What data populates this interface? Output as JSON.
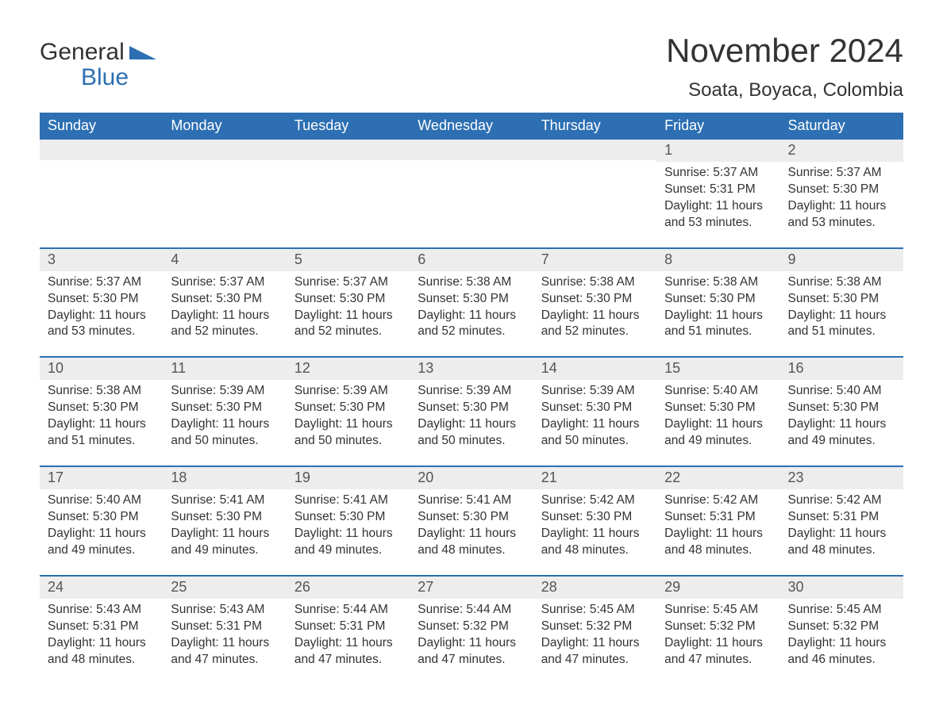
{
  "brand": {
    "text1": "General",
    "text2": "Blue",
    "accent_color": "#2d6fb2"
  },
  "title": "November 2024",
  "location": "Soata, Boyaca, Colombia",
  "colors": {
    "header_bg": "#2d6fb2",
    "header_text": "#ffffff",
    "band_bg": "#ededed",
    "text": "#333333",
    "rule": "#2d6fb2",
    "background": "#ffffff"
  },
  "dayHeaders": [
    "Sunday",
    "Monday",
    "Tuesday",
    "Wednesday",
    "Thursday",
    "Friday",
    "Saturday"
  ],
  "labels": {
    "sunrise": "Sunrise:",
    "sunset": "Sunset:",
    "daylight": "Daylight:"
  },
  "weeks": [
    [
      null,
      null,
      null,
      null,
      null,
      {
        "n": "1",
        "sunrise": "5:37 AM",
        "sunset": "5:31 PM",
        "daylight": "11 hours and 53 minutes."
      },
      {
        "n": "2",
        "sunrise": "5:37 AM",
        "sunset": "5:30 PM",
        "daylight": "11 hours and 53 minutes."
      }
    ],
    [
      {
        "n": "3",
        "sunrise": "5:37 AM",
        "sunset": "5:30 PM",
        "daylight": "11 hours and 53 minutes."
      },
      {
        "n": "4",
        "sunrise": "5:37 AM",
        "sunset": "5:30 PM",
        "daylight": "11 hours and 52 minutes."
      },
      {
        "n": "5",
        "sunrise": "5:37 AM",
        "sunset": "5:30 PM",
        "daylight": "11 hours and 52 minutes."
      },
      {
        "n": "6",
        "sunrise": "5:38 AM",
        "sunset": "5:30 PM",
        "daylight": "11 hours and 52 minutes."
      },
      {
        "n": "7",
        "sunrise": "5:38 AM",
        "sunset": "5:30 PM",
        "daylight": "11 hours and 52 minutes."
      },
      {
        "n": "8",
        "sunrise": "5:38 AM",
        "sunset": "5:30 PM",
        "daylight": "11 hours and 51 minutes."
      },
      {
        "n": "9",
        "sunrise": "5:38 AM",
        "sunset": "5:30 PM",
        "daylight": "11 hours and 51 minutes."
      }
    ],
    [
      {
        "n": "10",
        "sunrise": "5:38 AM",
        "sunset": "5:30 PM",
        "daylight": "11 hours and 51 minutes."
      },
      {
        "n": "11",
        "sunrise": "5:39 AM",
        "sunset": "5:30 PM",
        "daylight": "11 hours and 50 minutes."
      },
      {
        "n": "12",
        "sunrise": "5:39 AM",
        "sunset": "5:30 PM",
        "daylight": "11 hours and 50 minutes."
      },
      {
        "n": "13",
        "sunrise": "5:39 AM",
        "sunset": "5:30 PM",
        "daylight": "11 hours and 50 minutes."
      },
      {
        "n": "14",
        "sunrise": "5:39 AM",
        "sunset": "5:30 PM",
        "daylight": "11 hours and 50 minutes."
      },
      {
        "n": "15",
        "sunrise": "5:40 AM",
        "sunset": "5:30 PM",
        "daylight": "11 hours and 49 minutes."
      },
      {
        "n": "16",
        "sunrise": "5:40 AM",
        "sunset": "5:30 PM",
        "daylight": "11 hours and 49 minutes."
      }
    ],
    [
      {
        "n": "17",
        "sunrise": "5:40 AM",
        "sunset": "5:30 PM",
        "daylight": "11 hours and 49 minutes."
      },
      {
        "n": "18",
        "sunrise": "5:41 AM",
        "sunset": "5:30 PM",
        "daylight": "11 hours and 49 minutes."
      },
      {
        "n": "19",
        "sunrise": "5:41 AM",
        "sunset": "5:30 PM",
        "daylight": "11 hours and 49 minutes."
      },
      {
        "n": "20",
        "sunrise": "5:41 AM",
        "sunset": "5:30 PM",
        "daylight": "11 hours and 48 minutes."
      },
      {
        "n": "21",
        "sunrise": "5:42 AM",
        "sunset": "5:30 PM",
        "daylight": "11 hours and 48 minutes."
      },
      {
        "n": "22",
        "sunrise": "5:42 AM",
        "sunset": "5:31 PM",
        "daylight": "11 hours and 48 minutes."
      },
      {
        "n": "23",
        "sunrise": "5:42 AM",
        "sunset": "5:31 PM",
        "daylight": "11 hours and 48 minutes."
      }
    ],
    [
      {
        "n": "24",
        "sunrise": "5:43 AM",
        "sunset": "5:31 PM",
        "daylight": "11 hours and 48 minutes."
      },
      {
        "n": "25",
        "sunrise": "5:43 AM",
        "sunset": "5:31 PM",
        "daylight": "11 hours and 47 minutes."
      },
      {
        "n": "26",
        "sunrise": "5:44 AM",
        "sunset": "5:31 PM",
        "daylight": "11 hours and 47 minutes."
      },
      {
        "n": "27",
        "sunrise": "5:44 AM",
        "sunset": "5:32 PM",
        "daylight": "11 hours and 47 minutes."
      },
      {
        "n": "28",
        "sunrise": "5:45 AM",
        "sunset": "5:32 PM",
        "daylight": "11 hours and 47 minutes."
      },
      {
        "n": "29",
        "sunrise": "5:45 AM",
        "sunset": "5:32 PM",
        "daylight": "11 hours and 47 minutes."
      },
      {
        "n": "30",
        "sunrise": "5:45 AM",
        "sunset": "5:32 PM",
        "daylight": "11 hours and 46 minutes."
      }
    ]
  ]
}
